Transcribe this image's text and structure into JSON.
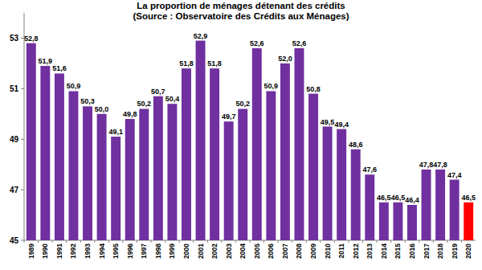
{
  "chart_data": {
    "type": "bar",
    "title": "La proportion de ménages détenant des crédits",
    "subtitle": "(Source : Observatoire des Crédits aux Ménages)",
    "categories": [
      "1989",
      "1990",
      "1991",
      "1992",
      "1993",
      "1994",
      "1995",
      "1996",
      "1997",
      "1998",
      "1999",
      "2000",
      "2001",
      "2002",
      "2003",
      "2004",
      "2005",
      "2006",
      "2007",
      "2008",
      "2009",
      "2010",
      "2011",
      "2012",
      "2013",
      "2014",
      "2015",
      "2016",
      "2017",
      "2018",
      "2019",
      "2020"
    ],
    "values": [
      52.8,
      51.9,
      51.6,
      50.9,
      50.3,
      50.0,
      49.1,
      49.8,
      50.2,
      50.7,
      50.4,
      51.8,
      52.9,
      51.8,
      49.7,
      50.2,
      52.6,
      50.9,
      52.0,
      52.6,
      50.8,
      49.5,
      49.4,
      48.6,
      47.6,
      46.5,
      46.5,
      46.4,
      47.8,
      47.8,
      47.4,
      46.5
    ],
    "value_labels": [
      "52,8",
      "51,9",
      "51,6",
      "50,9",
      "50,3",
      "50,0",
      "49,1",
      "49,8",
      "50,2",
      "50,7",
      "50,4",
      "51,8",
      "52,9",
      "51,8",
      "49,7",
      "50,2",
      "52,6",
      "50,9",
      "52,0",
      "52,6",
      "50,8",
      "49,5",
      "49,4",
      "48,6",
      "47,6",
      "46,5",
      "46,5",
      "46,4",
      "47,8",
      "47,8",
      "47,4",
      "46,5"
    ],
    "colors": [
      "#7030a0",
      "#7030a0",
      "#7030a0",
      "#7030a0",
      "#7030a0",
      "#7030a0",
      "#7030a0",
      "#7030a0",
      "#7030a0",
      "#7030a0",
      "#7030a0",
      "#7030a0",
      "#7030a0",
      "#7030a0",
      "#7030a0",
      "#7030a0",
      "#7030a0",
      "#7030a0",
      "#7030a0",
      "#7030a0",
      "#7030a0",
      "#7030a0",
      "#7030a0",
      "#7030a0",
      "#7030a0",
      "#7030a0",
      "#7030a0",
      "#7030a0",
      "#7030a0",
      "#7030a0",
      "#7030a0",
      "#ff0000"
    ],
    "ylim": [
      45,
      54
    ],
    "yticks": [
      45,
      47,
      49,
      51,
      53
    ],
    "grid": false,
    "data_labels": true
  }
}
